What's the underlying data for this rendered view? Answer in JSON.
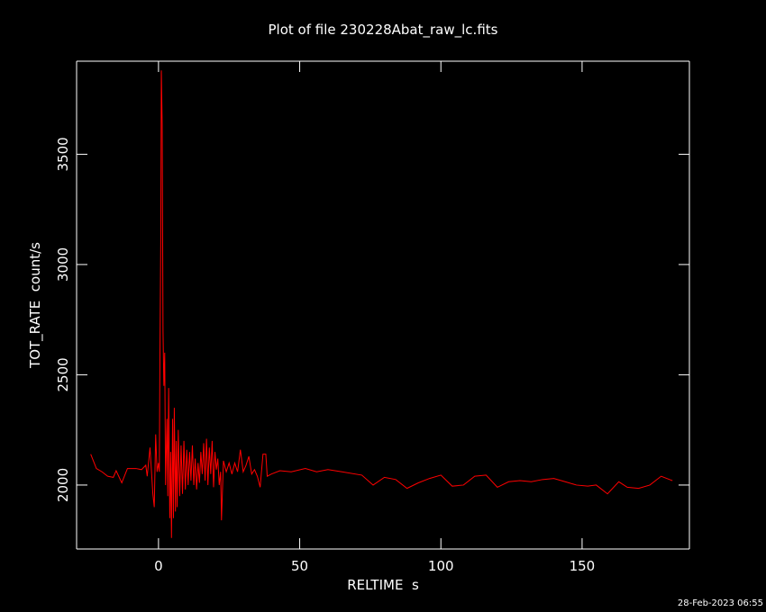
{
  "chart_data": {
    "type": "line",
    "title": "Plot of file 230228Abat_raw_lc.fits",
    "x_label": "RELTIME  s",
    "y_label": "TOT_RATE  count/s",
    "timestamp": "28-Feb-2023 06:55",
    "color": "#ff0000",
    "xlim": [
      -29,
      188
    ],
    "ylim": [
      1710,
      3922
    ],
    "xticks": [
      0,
      50,
      100,
      150
    ],
    "yticks": [
      2000,
      2500,
      3000,
      3500
    ],
    "x": [
      -24,
      -22,
      -20,
      -18,
      -16,
      -15,
      -13,
      -11,
      -8,
      -6,
      -4.5,
      -4,
      -3,
      -2,
      -1.5,
      -1,
      -0.5,
      0,
      0.3,
      0.5,
      0.8,
      1,
      1.3,
      1.6,
      1.9,
      2.2,
      2.5,
      3,
      3.3,
      3.6,
      4,
      4.3,
      4.6,
      5,
      5.3,
      5.6,
      6,
      6.3,
      6.6,
      7,
      7.5,
      8,
      8.5,
      9,
      9.5,
      10,
      10.5,
      11,
      11.5,
      12,
      12.5,
      13,
      13.5,
      14,
      14.5,
      15,
      15.5,
      16,
      16.5,
      17,
      17.5,
      18,
      18.5,
      19,
      19.5,
      20,
      20.5,
      21,
      21.5,
      22,
      22.3,
      23,
      24,
      25,
      26,
      27,
      28,
      29,
      30,
      31,
      32,
      33,
      34,
      35,
      36,
      37,
      38,
      38.5,
      40,
      43,
      47,
      52,
      56,
      60,
      65,
      72,
      76,
      80,
      84,
      88,
      92,
      96,
      100,
      104,
      108,
      112,
      116,
      120,
      124,
      128,
      132,
      136,
      140,
      144,
      148,
      152,
      155,
      159,
      163,
      166,
      170,
      174,
      178,
      182
    ],
    "values": [
      2140,
      2075,
      2060,
      2040,
      2035,
      2065,
      2010,
      2075,
      2075,
      2070,
      2090,
      2040,
      2170,
      1960,
      1900,
      2230,
      2060,
      2100,
      2060,
      2560,
      3100,
      3880,
      3640,
      2700,
      2450,
      2600,
      2000,
      2300,
      1950,
      2440,
      1850,
      2150,
      1760,
      2300,
      1850,
      2350,
      1880,
      2200,
      1900,
      2250,
      1950,
      2180,
      1960,
      2200,
      1980,
      2160,
      2000,
      2150,
      2020,
      2180,
      2000,
      2120,
      1980,
      2100,
      2010,
      2150,
      2050,
      2190,
      2020,
      2210,
      2000,
      2170,
      2050,
      2200,
      1990,
      2150,
      2070,
      2120,
      2000,
      2060,
      1840,
      2110,
      2060,
      2100,
      2050,
      2100,
      2060,
      2160,
      2060,
      2090,
      2130,
      2050,
      2070,
      2040,
      1990,
      2140,
      2140,
      2040,
      2050,
      2065,
      2060,
      2075,
      2060,
      2070,
      2060,
      2045,
      2000,
      2035,
      2025,
      1985,
      2010,
      2030,
      2045,
      1995,
      2000,
      2040,
      2045,
      1990,
      2015,
      2020,
      2015,
      2025,
      2030,
      2015,
      2000,
      1995,
      2000,
      1960,
      2015,
      1990,
      1985,
      2000,
      2040,
      2020
    ]
  }
}
